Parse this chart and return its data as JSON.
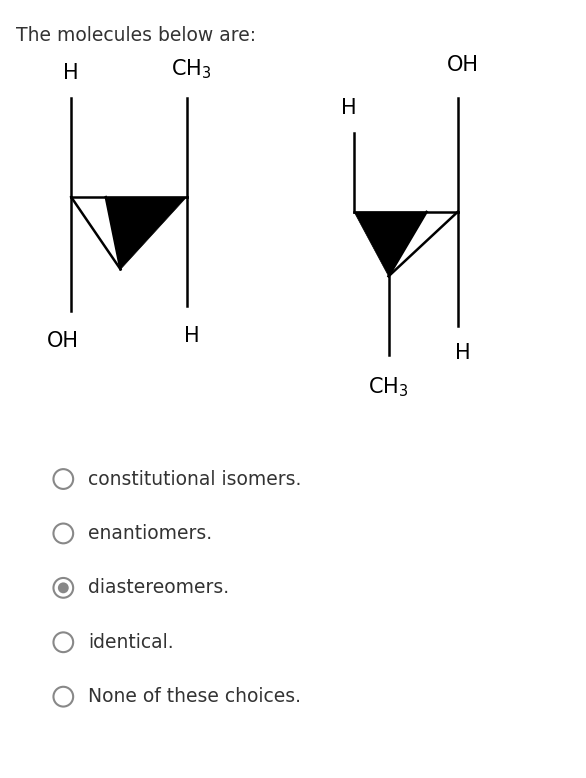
{
  "title": "The molecules below are:",
  "title_fontsize": 13.5,
  "bg_color": "#ffffff",
  "text_color": "#333333",
  "options": [
    {
      "label": "constitutional isomers.",
      "selected": false
    },
    {
      "label": "enantiomers.",
      "selected": false
    },
    {
      "label": "diastereomers.",
      "selected": true
    },
    {
      "label": "identical.",
      "selected": false
    },
    {
      "label": "None of these choices.",
      "selected": false
    }
  ],
  "radio_color": "#888888",
  "radio_fill": "#888888"
}
